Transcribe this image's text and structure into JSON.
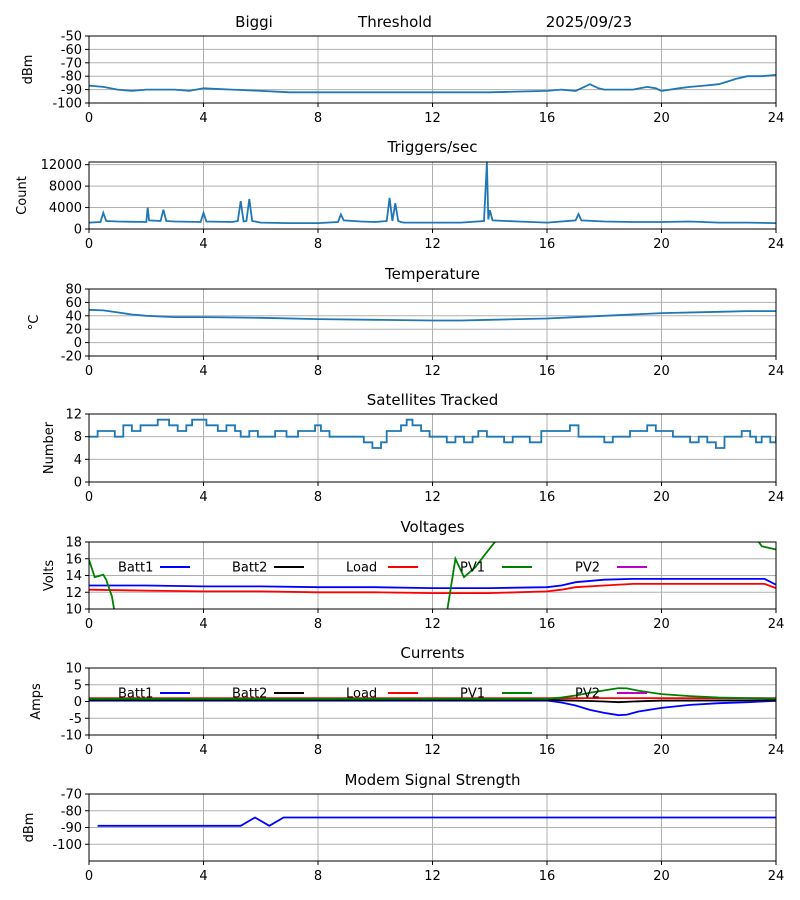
{
  "header": {
    "site": "Biggi",
    "mode": "Threshold",
    "date": "2025/09/23"
  },
  "colors": {
    "main": "#1f77b4",
    "batt1": "#0000ff",
    "batt2": "#000000",
    "load": "#ff0000",
    "pv1": "#008000",
    "pv2": "#c000c0",
    "grid": "#b0b0b0"
  },
  "chart_data": [
    {
      "id": "signal",
      "type": "line",
      "title": "",
      "xlabel": "",
      "ylabel": "dBm",
      "xlim": [
        0,
        24
      ],
      "ylim": [
        -100,
        -50
      ],
      "xticks": [
        0,
        4,
        8,
        12,
        16,
        20,
        24
      ],
      "yticks": [
        -100,
        -90,
        -80,
        -70,
        -60,
        -50
      ],
      "series": [
        {
          "name": "signal",
          "color": "#1f77b4",
          "x": [
            0,
            0.5,
            1,
            1.5,
            2,
            3,
            3.5,
            4,
            5,
            6,
            7,
            8,
            10,
            12,
            14,
            16,
            16.5,
            17,
            17.3,
            17.5,
            17.8,
            18,
            18.5,
            19,
            19.5,
            19.8,
            20,
            20.3,
            20.6,
            21,
            21.5,
            22,
            22.3,
            22.6,
            23,
            23.5,
            24
          ],
          "y": [
            -87,
            -88,
            -90,
            -91,
            -90,
            -90,
            -91,
            -89,
            -90,
            -91,
            -92,
            -92,
            -92,
            -92,
            -92,
            -91,
            -90,
            -91,
            -88,
            -86,
            -89,
            -90,
            -90,
            -90,
            -88,
            -89,
            -91,
            -90,
            -89,
            -88,
            -87,
            -86,
            -84,
            -82,
            -80,
            -80,
            -79
          ]
        }
      ]
    },
    {
      "id": "triggers",
      "type": "line",
      "title": "Triggers/sec",
      "xlabel": "",
      "ylabel": "Count",
      "xlim": [
        0,
        24
      ],
      "ylim": [
        0,
        12500
      ],
      "xticks": [
        0,
        4,
        8,
        12,
        16,
        20,
        24
      ],
      "yticks": [
        0,
        4000,
        8000,
        12000
      ],
      "series": [
        {
          "name": "triggers",
          "color": "#1f77b4",
          "x": [
            0,
            0.4,
            0.5,
            0.6,
            1,
            2,
            2.05,
            2.1,
            2.5,
            2.6,
            2.7,
            3,
            3.9,
            4,
            4.1,
            5,
            5.2,
            5.3,
            5.4,
            5.5,
            5.6,
            5.7,
            6,
            7,
            8,
            8.7,
            8.8,
            8.9,
            9.5,
            10,
            10.4,
            10.5,
            10.6,
            10.7,
            10.8,
            10.9,
            11,
            12,
            13,
            13.8,
            13.9,
            13.95,
            14,
            14.1,
            15,
            16,
            17,
            17.1,
            17.2,
            18,
            19,
            20,
            21,
            22,
            23,
            24
          ],
          "y": [
            1200,
            1300,
            3000,
            1500,
            1400,
            1300,
            4000,
            1600,
            1500,
            3600,
            1500,
            1400,
            1300,
            3000,
            1400,
            1300,
            1500,
            5200,
            1400,
            1500,
            5600,
            1500,
            1200,
            1100,
            1100,
            1300,
            2700,
            1600,
            1400,
            1300,
            1500,
            5800,
            1500,
            4800,
            1500,
            1300,
            1200,
            1200,
            1200,
            1500,
            12400,
            1800,
            3500,
            1600,
            1400,
            1200,
            1600,
            2800,
            1600,
            1400,
            1300,
            1300,
            1400,
            1200,
            1200,
            1100
          ]
        }
      ]
    },
    {
      "id": "temperature",
      "type": "line",
      "title": "Temperature",
      "xlabel": "",
      "ylabel": "°C",
      "xlim": [
        0,
        24
      ],
      "ylim": [
        -20,
        80
      ],
      "xticks": [
        0,
        4,
        8,
        12,
        16,
        20,
        24
      ],
      "yticks": [
        -20,
        0,
        20,
        40,
        60,
        80
      ],
      "series": [
        {
          "name": "temperature",
          "color": "#1f77b4",
          "x": [
            0,
            0.5,
            1,
            1.5,
            2,
            2.5,
            3,
            4,
            6,
            8,
            10,
            12,
            13,
            14,
            16,
            18,
            20,
            22,
            23,
            24
          ],
          "y": [
            49,
            48,
            45,
            42,
            40,
            39,
            38,
            38,
            37,
            35,
            34,
            33,
            33,
            34,
            36,
            40,
            44,
            46,
            47,
            47
          ]
        }
      ]
    },
    {
      "id": "satellites",
      "type": "line",
      "title": "Satellites Tracked",
      "xlabel": "",
      "ylabel": "Number",
      "xlim": [
        0,
        24
      ],
      "ylim": [
        0,
        12
      ],
      "xticks": [
        0,
        4,
        8,
        12,
        16,
        20,
        24
      ],
      "yticks": [
        0,
        4,
        8,
        12
      ],
      "step": true,
      "series": [
        {
          "name": "satellites",
          "color": "#1f77b4",
          "x": [
            0,
            0.3,
            0.6,
            0.9,
            1.2,
            1.5,
            1.8,
            2.1,
            2.4,
            2.8,
            3.1,
            3.4,
            3.6,
            3.9,
            4.1,
            4.5,
            4.8,
            5.1,
            5.3,
            5.6,
            5.9,
            6.2,
            6.5,
            6.9,
            7.3,
            7.6,
            7.9,
            8.1,
            8.4,
            8.7,
            9.0,
            9.3,
            9.6,
            9.9,
            10.2,
            10.4,
            10.6,
            10.9,
            11.1,
            11.3,
            11.6,
            11.9,
            12.2,
            12.5,
            12.8,
            13.1,
            13.4,
            13.6,
            13.9,
            14.2,
            14.5,
            14.8,
            15.1,
            15.4,
            15.8,
            16.1,
            16.5,
            16.8,
            17.1,
            17.4,
            17.7,
            18.0,
            18.3,
            18.6,
            18.9,
            19.2,
            19.5,
            19.8,
            20.1,
            20.4,
            20.7,
            21.0,
            21.3,
            21.6,
            21.9,
            22.2,
            22.5,
            22.8,
            23.1,
            23.3,
            23.5,
            23.8,
            24
          ],
          "y": [
            8,
            9,
            9,
            8,
            10,
            9,
            10,
            10,
            11,
            10,
            9,
            10,
            11,
            11,
            10,
            9,
            10,
            9,
            8,
            9,
            8,
            8,
            9,
            8,
            9,
            9,
            10,
            9,
            8,
            8,
            8,
            8,
            7,
            6,
            7,
            9,
            9,
            10,
            11,
            10,
            9,
            8,
            8,
            7,
            8,
            7,
            8,
            9,
            8,
            8,
            7,
            8,
            8,
            7,
            9,
            9,
            9,
            10,
            8,
            8,
            8,
            7,
            8,
            8,
            9,
            9,
            10,
            9,
            9,
            8,
            8,
            7,
            8,
            7,
            6,
            8,
            8,
            9,
            8,
            7,
            8,
            7,
            8
          ]
        }
      ]
    },
    {
      "id": "voltages",
      "type": "line",
      "title": "Voltages",
      "xlabel": "",
      "ylabel": "Volts",
      "xlim": [
        0,
        24
      ],
      "ylim": [
        10,
        18
      ],
      "xticks": [
        0,
        4,
        8,
        12,
        16,
        20,
        24
      ],
      "yticks": [
        10,
        12,
        14,
        16,
        18
      ],
      "legend": [
        "Batt1",
        "Batt2",
        "Load",
        "PV1",
        "PV2"
      ],
      "series": [
        {
          "name": "Batt1",
          "color": "#0000ff",
          "x": [
            0,
            2,
            4,
            6,
            8,
            10,
            12,
            14,
            16,
            16.5,
            17,
            18,
            19,
            20,
            22,
            23.6,
            24
          ],
          "y": [
            12.8,
            12.8,
            12.7,
            12.7,
            12.6,
            12.6,
            12.5,
            12.5,
            12.6,
            12.8,
            13.2,
            13.5,
            13.6,
            13.6,
            13.6,
            13.6,
            12.9
          ]
        },
        {
          "name": "Load",
          "color": "#ff0000",
          "x": [
            0,
            2,
            4,
            6,
            8,
            10,
            12,
            14,
            16,
            16.5,
            17,
            18,
            19,
            20,
            22,
            23.6,
            24
          ],
          "y": [
            12.3,
            12.2,
            12.1,
            12.1,
            12,
            12,
            11.9,
            11.9,
            12.1,
            12.3,
            12.6,
            12.8,
            13,
            13,
            13,
            13,
            12.5
          ]
        },
        {
          "name": "PV1",
          "color": "#008000",
          "x": [
            0,
            0.2,
            0.5,
            0.6,
            0.8,
            0.9,
            12.5,
            12.8,
            13.1,
            13.5,
            13.9,
            14.3,
            23.3,
            23.5,
            24
          ],
          "y": [
            15.9,
            13.8,
            14.1,
            13.5,
            11.5,
            9.5,
            9.5,
            16,
            13.8,
            15.0,
            16.8,
            18.5,
            18.5,
            17.5,
            17.1
          ]
        }
      ]
    },
    {
      "id": "currents",
      "type": "line",
      "title": "Currents",
      "xlabel": "",
      "ylabel": "Amps",
      "xlim": [
        0,
        24
      ],
      "ylim": [
        -10,
        10
      ],
      "xticks": [
        0,
        4,
        8,
        12,
        16,
        20,
        24
      ],
      "yticks": [
        -10,
        -5,
        0,
        5,
        10
      ],
      "legend": [
        "Batt1",
        "Batt2",
        "Load",
        "PV1",
        "PV2"
      ],
      "series": [
        {
          "name": "Batt1",
          "color": "#0000ff",
          "x": [
            0,
            8,
            16,
            16.5,
            17,
            17.5,
            18,
            18.5,
            18.8,
            19.2,
            20,
            21,
            22,
            23,
            23.5,
            24
          ],
          "y": [
            0.3,
            0.3,
            0.3,
            -0.3,
            -1.2,
            -2.5,
            -3.4,
            -4.1,
            -3.9,
            -3.0,
            -1.9,
            -1.0,
            -0.5,
            -0.2,
            0,
            0.2
          ]
        },
        {
          "name": "Batt2",
          "color": "#000000",
          "x": [
            0,
            8,
            16,
            17,
            18,
            18.5,
            19,
            20,
            24
          ],
          "y": [
            0.5,
            0.5,
            0.5,
            0.3,
            0,
            -0.2,
            0,
            0.3,
            0.4
          ]
        },
        {
          "name": "Load",
          "color": "#ff0000",
          "x": [
            0,
            24
          ],
          "y": [
            1.0,
            1.0
          ]
        },
        {
          "name": "PV1",
          "color": "#008000",
          "x": [
            0,
            16,
            16.5,
            17,
            17.5,
            18,
            18.5,
            18.8,
            19.2,
            20,
            21,
            22,
            23,
            24
          ],
          "y": [
            0.8,
            0.8,
            1.2,
            1.8,
            2.6,
            3.3,
            4.0,
            3.9,
            3.2,
            2.2,
            1.6,
            1.2,
            1.0,
            0.9
          ]
        }
      ]
    },
    {
      "id": "modem",
      "type": "line",
      "title": "Modem Signal Strength",
      "xlabel": "",
      "ylabel": "dBm",
      "xlim": [
        0,
        24
      ],
      "ylim": [
        -110,
        -70
      ],
      "xticks": [
        0,
        4,
        8,
        12,
        16,
        20,
        24
      ],
      "yticks": [
        -100,
        -90,
        -80,
        -70
      ],
      "series": [
        {
          "name": "modem",
          "color": "#0000ff",
          "x": [
            0.3,
            5.3,
            5.8,
            6.3,
            6.8,
            24
          ],
          "y": [
            -89,
            -89,
            -84,
            -89,
            -84,
            -84
          ]
        }
      ]
    }
  ]
}
